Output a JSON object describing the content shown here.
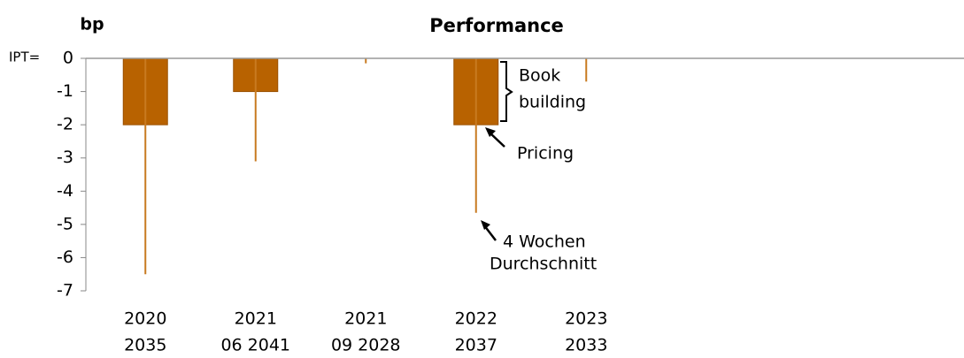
{
  "chart_data": {
    "type": "bar",
    "title": "Performance",
    "y_label": "bp",
    "zero_label": "IPT=",
    "categories": [
      [
        "2020",
        "2035"
      ],
      [
        "2021",
        "06 2041"
      ],
      [
        "2021",
        "09 2028"
      ],
      [
        "2022",
        "2037"
      ],
      [
        "2023",
        "2033"
      ]
    ],
    "series": [
      {
        "type": "bar",
        "color": "#b86200",
        "values": [
          -2,
          -1,
          0,
          -2,
          0
        ]
      },
      {
        "type": "line",
        "color": "#c87a20",
        "values": [
          -6.5,
          -3.1,
          -0.15,
          -4.65,
          -0.7
        ]
      }
    ],
    "annotations": [
      [
        "Book",
        "building"
      ],
      [
        "Pricing"
      ],
      [
        "4 Wochen",
        "Durchschnitt"
      ]
    ],
    "ylim": [
      -7,
      0
    ],
    "yticks": [
      0,
      -1,
      -2,
      -3,
      -4,
      -5,
      -6,
      -7
    ]
  }
}
